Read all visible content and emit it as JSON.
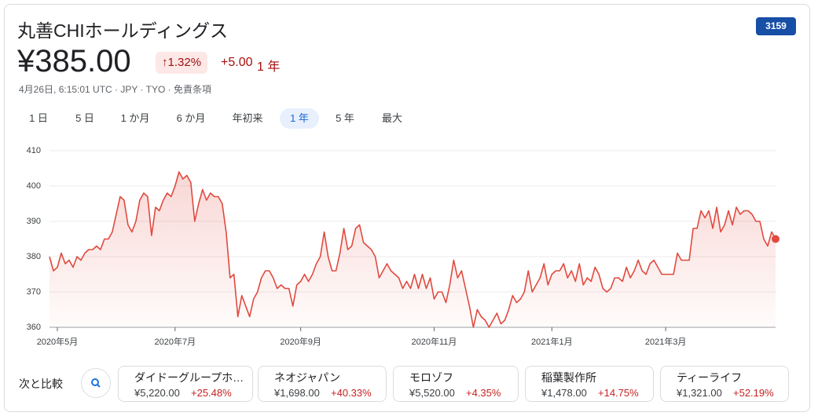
{
  "header": {
    "title": "丸善CHIホールディングス",
    "ticker": "3159",
    "price": "¥385.00",
    "change_percent": "1.32%",
    "change": "+5.00",
    "period": "1 年",
    "subtitle": "4月26日, 6:15:01 UTC · JPY · TYO · 免責条項"
  },
  "tabs": {
    "items": [
      "1 日",
      "5 日",
      "1 か月",
      "6 か月",
      "年初来",
      "1 年",
      "5 年",
      "最大"
    ],
    "selected": 5
  },
  "chart_data": {
    "type": "line",
    "color": "#e04a3f",
    "grid": true,
    "ylim": [
      360,
      410
    ],
    "yticks": [
      360,
      370,
      380,
      390,
      400,
      410
    ],
    "categories": [
      null,
      null,
      "2020年5月",
      null,
      null,
      null,
      null,
      null,
      null,
      null,
      null,
      null,
      null,
      null,
      null,
      null,
      null,
      null,
      null,
      null,
      null,
      null,
      null,
      null,
      null,
      null,
      null,
      null,
      null,
      null,
      null,
      null,
      "2020年7月",
      null,
      null,
      null,
      null,
      null,
      null,
      null,
      null,
      null,
      null,
      null,
      null,
      null,
      null,
      null,
      null,
      null,
      null,
      null,
      null,
      null,
      null,
      null,
      null,
      null,
      null,
      null,
      null,
      null,
      null,
      null,
      "2020年9月",
      null,
      null,
      null,
      null,
      null,
      null,
      null,
      null,
      null,
      null,
      null,
      null,
      null,
      null,
      null,
      null,
      null,
      null,
      null,
      null,
      null,
      null,
      null,
      null,
      null,
      null,
      null,
      null,
      null,
      null,
      null,
      null,
      null,
      "2020年11月",
      null,
      null,
      null,
      null,
      null,
      null,
      null,
      null,
      null,
      null,
      null,
      null,
      null,
      null,
      null,
      null,
      null,
      null,
      null,
      null,
      null,
      null,
      null,
      null,
      null,
      null,
      null,
      null,
      null,
      "2021年1月",
      null,
      null,
      null,
      null,
      null,
      null,
      null,
      null,
      null,
      null,
      null,
      null,
      null,
      null,
      null,
      null,
      null,
      null,
      null,
      null,
      null,
      null,
      null,
      null,
      null,
      null,
      null,
      null,
      "2021年3月",
      null,
      null,
      null,
      null,
      null,
      null,
      null,
      null,
      null,
      null,
      null,
      null,
      null,
      null,
      null,
      null,
      null,
      null,
      null,
      null,
      null,
      null,
      null,
      null,
      null,
      null,
      null,
      null
    ],
    "values": [
      380,
      376,
      377,
      381,
      378,
      379,
      377,
      380,
      379,
      381,
      382,
      382,
      383,
      382,
      385,
      385,
      387,
      392,
      397,
      396,
      389,
      387,
      390,
      396,
      398,
      397,
      386,
      394,
      393,
      396,
      398,
      397,
      400,
      404,
      402,
      403,
      401,
      390,
      395,
      399,
      396,
      398,
      397,
      397,
      395,
      387,
      374,
      375,
      363,
      369,
      366,
      363,
      368,
      370,
      374,
      376,
      376,
      374,
      371,
      372,
      371,
      371,
      366,
      372,
      373,
      375,
      373,
      375,
      378,
      380,
      387,
      380,
      376,
      376,
      381,
      388,
      382,
      383,
      388,
      389,
      384,
      383,
      382,
      380,
      374,
      376,
      378,
      376,
      375,
      374,
      371,
      373,
      371,
      375,
      371,
      375,
      371,
      374,
      368,
      370,
      370,
      367,
      372,
      379,
      374,
      376,
      371,
      366,
      360,
      365,
      363,
      362,
      360,
      362,
      364,
      361,
      362,
      365,
      369,
      367,
      368,
      370,
      376,
      370,
      372,
      374,
      378,
      372,
      375,
      376,
      376,
      378,
      374,
      376,
      373,
      378,
      372,
      374,
      373,
      377,
      375,
      371,
      370,
      371,
      374,
      374,
      373,
      377,
      374,
      376,
      379,
      376,
      375,
      378,
      379,
      377,
      375,
      375,
      375,
      375,
      381,
      379,
      379,
      379,
      388,
      388,
      393,
      391,
      393,
      388,
      394,
      387,
      389,
      393,
      389,
      394,
      392,
      393,
      393,
      392,
      390,
      390,
      385,
      383,
      387,
      385
    ]
  },
  "compare": {
    "label": "次と比較",
    "items": [
      {
        "name": "ダイドーグループホ…",
        "price": "¥5,220.00",
        "change": "+25.48%"
      },
      {
        "name": "ネオジャパン",
        "price": "¥1,698.00",
        "change": "+40.33%"
      },
      {
        "name": "モロゾフ",
        "price": "¥5,520.00",
        "change": "+4.35%"
      },
      {
        "name": "稲葉製作所",
        "price": "¥1,478.00",
        "change": "+14.75%"
      },
      {
        "name": "ティーライフ",
        "price": "¥1,321.00",
        "change": "+52.19%"
      }
    ]
  }
}
